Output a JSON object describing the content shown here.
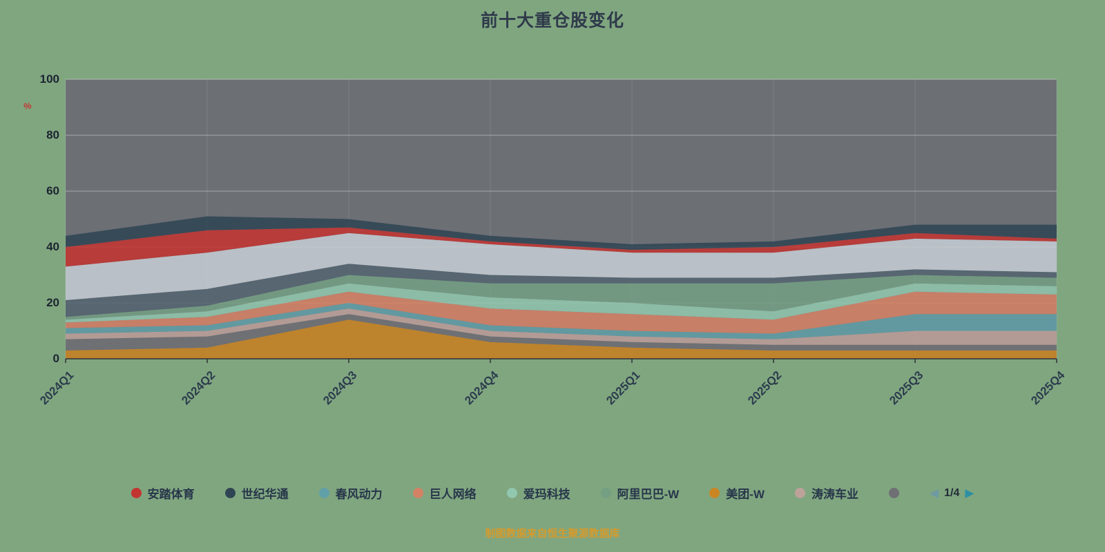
{
  "title": "前十大重仓股变化",
  "footer": {
    "note": "制图数据来自恒生聚源数据库"
  },
  "y_axis": {
    "unit_marker": "%",
    "ticks": [
      0,
      20,
      40,
      60,
      80,
      100
    ]
  },
  "legend": {
    "items": [
      {
        "label": "安踏体育",
        "color": "#c23531"
      },
      {
        "label": "世纪华通",
        "color": "#2f4554"
      },
      {
        "label": "春风动力",
        "color": "#61a0a8"
      },
      {
        "label": "巨人网络",
        "color": "#d48265"
      },
      {
        "label": "爱玛科技",
        "color": "#91c7ae"
      },
      {
        "label": "阿里巴巴-W",
        "color": "#749f83"
      },
      {
        "label": "美团-W",
        "color": "#ca8622"
      },
      {
        "label": "涛涛车业",
        "color": "#bda29a"
      },
      {
        "label": "",
        "color": "#6e7074"
      }
    ],
    "pagination": {
      "page": "1/4",
      "prev_icon": "◀",
      "next_icon": "▶"
    }
  },
  "chart_data": {
    "type": "area",
    "stacked": true,
    "title": "前十大重仓股变化",
    "plot_bg": "#6c6f74",
    "grid_line_color": "rgba(255,255,255,0.40)",
    "ylim": [
      0,
      100
    ],
    "categories": [
      "2024Q1",
      "2024Q2",
      "2024Q3",
      "2024Q4",
      "2025Q1",
      "2025Q2",
      "2025Q3",
      "2025Q4"
    ],
    "series": [
      {
        "name": "美团-W",
        "color": "#ca8622",
        "values": [
          3,
          4,
          14,
          6,
          4,
          3,
          3,
          3
        ]
      },
      {
        "name": "",
        "color": "#6e7074",
        "values": [
          4,
          4,
          2,
          2,
          2,
          2,
          2,
          2
        ]
      },
      {
        "name": "涛涛车业",
        "color": "#bda29a",
        "values": [
          2,
          2,
          2,
          2,
          2,
          2,
          5,
          5
        ]
      },
      {
        "name": "春风动力",
        "color": "#61a0a8",
        "values": [
          2,
          2,
          2,
          2,
          2,
          2,
          6,
          6
        ]
      },
      {
        "name": "巨人网络",
        "color": "#d48265",
        "values": [
          2,
          3,
          4,
          6,
          6,
          5,
          8,
          7
        ]
      },
      {
        "name": "爱玛科技",
        "color": "#91c7ae",
        "values": [
          1,
          2,
          3,
          4,
          4,
          3,
          3,
          3
        ]
      },
      {
        "name": "阿里巴巴-W",
        "color": "#749f83",
        "values": [
          1,
          2,
          3,
          5,
          7,
          10,
          3,
          3
        ]
      },
      {
        "name": "",
        "color": "#546570",
        "values": [
          6,
          6,
          4,
          3,
          2,
          2,
          2,
          2
        ]
      },
      {
        "name": "",
        "color": "#c4ccd3",
        "values": [
          12,
          13,
          11,
          11,
          9,
          9,
          11,
          11
        ]
      },
      {
        "name": "安踏体育",
        "color": "#c23531",
        "values": [
          7,
          8,
          2,
          1,
          1,
          2,
          2,
          1
        ]
      },
      {
        "name": "世纪华通",
        "color": "#2f4554",
        "values": [
          4,
          5,
          3,
          2,
          2,
          2,
          3,
          5
        ]
      }
    ]
  }
}
